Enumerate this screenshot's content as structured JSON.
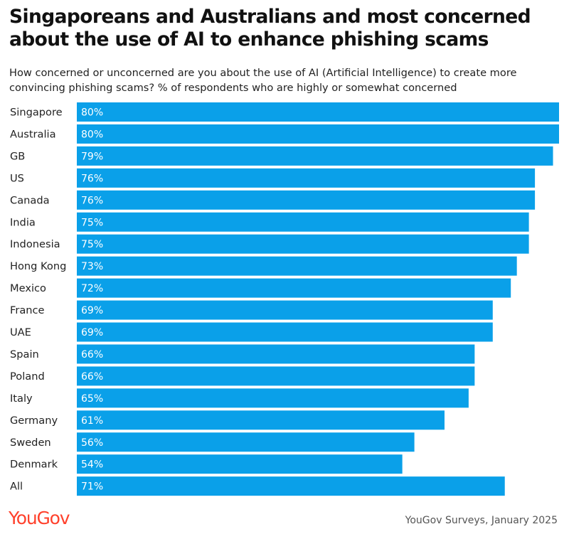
{
  "title": "Singaporeans and Australians and most concerned about the use of AI to enhance phishing scams",
  "subtitle": "How concerned or unconcerned are you about the use of AI (Artificial Intelligence) to create more convincing phishing scams? % of respondents who are highly or somewhat concerned",
  "logo_text": "YouGov",
  "source": "YouGov Surveys, January 2025",
  "colors": {
    "bar": "#0aa0e9",
    "logo": "#ff412c"
  },
  "chart_data": {
    "type": "bar",
    "orientation": "horizontal",
    "categories": [
      "Singapore",
      "Australia",
      "GB",
      "US",
      "Canada",
      "India",
      "Indonesia",
      "Hong Kong",
      "Mexico",
      "France",
      "UAE",
      "Spain",
      "Poland",
      "Italy",
      "Germany",
      "Sweden",
      "Denmark",
      "All"
    ],
    "values": [
      80,
      80,
      79,
      76,
      76,
      75,
      75,
      73,
      72,
      69,
      69,
      66,
      66,
      65,
      61,
      56,
      54,
      71
    ],
    "value_labels": [
      "80%",
      "80%",
      "79%",
      "76%",
      "76%",
      "75%",
      "75%",
      "73%",
      "72%",
      "69%",
      "69%",
      "66%",
      "66%",
      "65%",
      "61%",
      "56%",
      "54%",
      "71%"
    ],
    "xlim": [
      0,
      80
    ],
    "grid": false,
    "legend": "none"
  }
}
